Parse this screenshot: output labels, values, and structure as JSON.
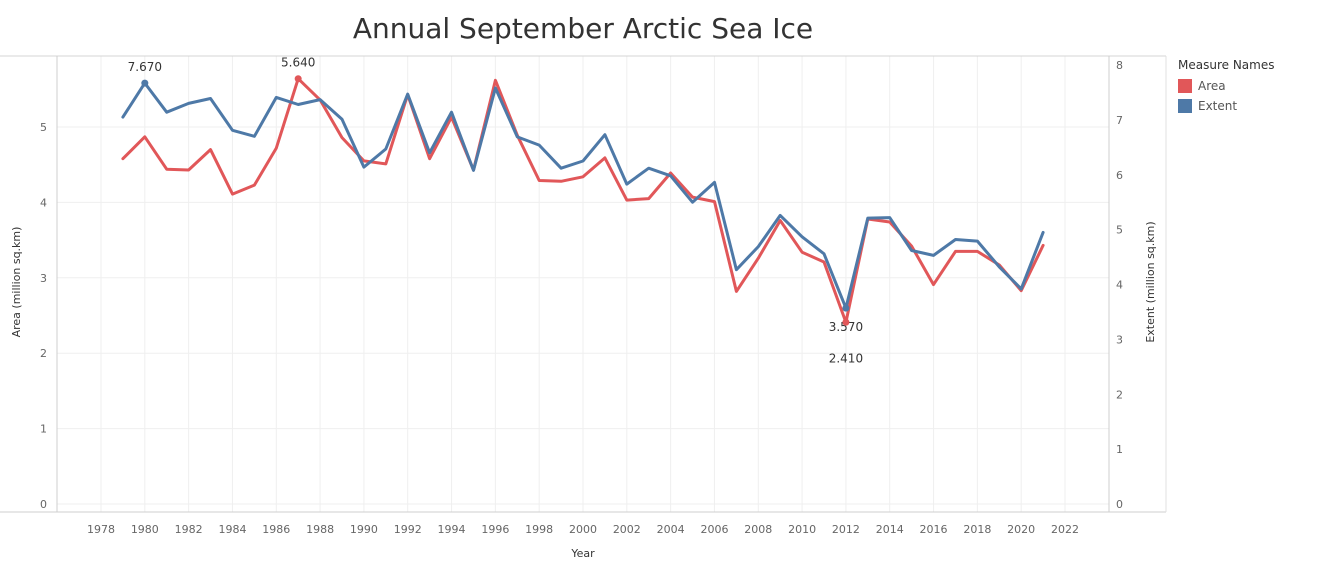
{
  "chart_data": {
    "type": "line",
    "title": "Annual September Arctic Sea Ice",
    "xlabel": "Year",
    "ylabel_left": "Area (million sq.km)",
    "ylabel_right": "Extent (million sq.km)",
    "x_ticks": [
      1978,
      1980,
      1982,
      1984,
      1986,
      1988,
      1990,
      1992,
      1994,
      1996,
      1998,
      2000,
      2002,
      2004,
      2006,
      2008,
      2010,
      2012,
      2014,
      2016,
      2018,
      2020,
      2022
    ],
    "xlim": [
      1976.0,
      2024.0
    ],
    "y_left_ticks": [
      0,
      1,
      2,
      3,
      4,
      5
    ],
    "ylim_left": [
      0,
      5.78
    ],
    "y_right_ticks": [
      0,
      1,
      2,
      3,
      4,
      5,
      6,
      7,
      8
    ],
    "ylim_right": [
      0,
      8.1
    ],
    "grid": true,
    "legend_title": "Measure Names",
    "legend_position": "top-right",
    "series": [
      {
        "name": "Area",
        "axis": "left",
        "color": "#e15759",
        "x": [
          1979,
          1980,
          1981,
          1982,
          1983,
          1984,
          1985,
          1986,
          1987,
          1988,
          1989,
          1990,
          1991,
          1992,
          1993,
          1994,
          1995,
          1996,
          1997,
          1998,
          1999,
          2000,
          2001,
          2002,
          2003,
          2004,
          2005,
          2006,
          2007,
          2008,
          2009,
          2010,
          2011,
          2012,
          2013,
          2014,
          2015,
          2016,
          2017,
          2018,
          2019,
          2020,
          2021
        ],
        "values": [
          4.58,
          4.87,
          4.44,
          4.43,
          4.7,
          4.11,
          4.23,
          4.72,
          5.64,
          5.36,
          4.86,
          4.55,
          4.51,
          5.43,
          4.58,
          5.13,
          4.43,
          5.62,
          4.89,
          4.29,
          4.28,
          4.34,
          4.59,
          4.03,
          4.05,
          4.39,
          4.07,
          4.01,
          2.82,
          3.26,
          3.76,
          3.34,
          3.21,
          2.41,
          3.78,
          3.74,
          3.42,
          2.91,
          3.35,
          3.35,
          3.17,
          2.83,
          3.43
        ]
      },
      {
        "name": "Extent",
        "axis": "right",
        "color": "#4e79a7",
        "x": [
          1979,
          1980,
          1981,
          1982,
          1983,
          1984,
          1985,
          1986,
          1987,
          1988,
          1989,
          1990,
          1991,
          1992,
          1993,
          1994,
          1995,
          1996,
          1997,
          1998,
          1999,
          2000,
          2001,
          2002,
          2003,
          2004,
          2005,
          2006,
          2007,
          2008,
          2009,
          2010,
          2011,
          2012,
          2013,
          2014,
          2015,
          2016,
          2017,
          2018,
          2019,
          2020,
          2021
        ],
        "values": [
          7.05,
          7.67,
          7.14,
          7.3,
          7.39,
          6.81,
          6.7,
          7.41,
          7.28,
          7.37,
          7.01,
          6.14,
          6.47,
          7.47,
          6.4,
          7.14,
          6.08,
          7.58,
          6.69,
          6.54,
          6.12,
          6.25,
          6.73,
          5.83,
          6.12,
          5.98,
          5.5,
          5.86,
          4.27,
          4.69,
          5.26,
          4.87,
          4.56,
          3.57,
          5.21,
          5.22,
          4.62,
          4.53,
          4.82,
          4.79,
          4.32,
          3.92,
          4.95
        ]
      }
    ],
    "annotations": [
      {
        "text": "7.670",
        "series": "Extent",
        "x": 1980
      },
      {
        "text": "5.640",
        "series": "Area",
        "x": 1987
      },
      {
        "text": "3.570",
        "series": "Extent",
        "x": 2012
      },
      {
        "text": "2.410",
        "series": "Area",
        "x": 2012
      }
    ]
  }
}
